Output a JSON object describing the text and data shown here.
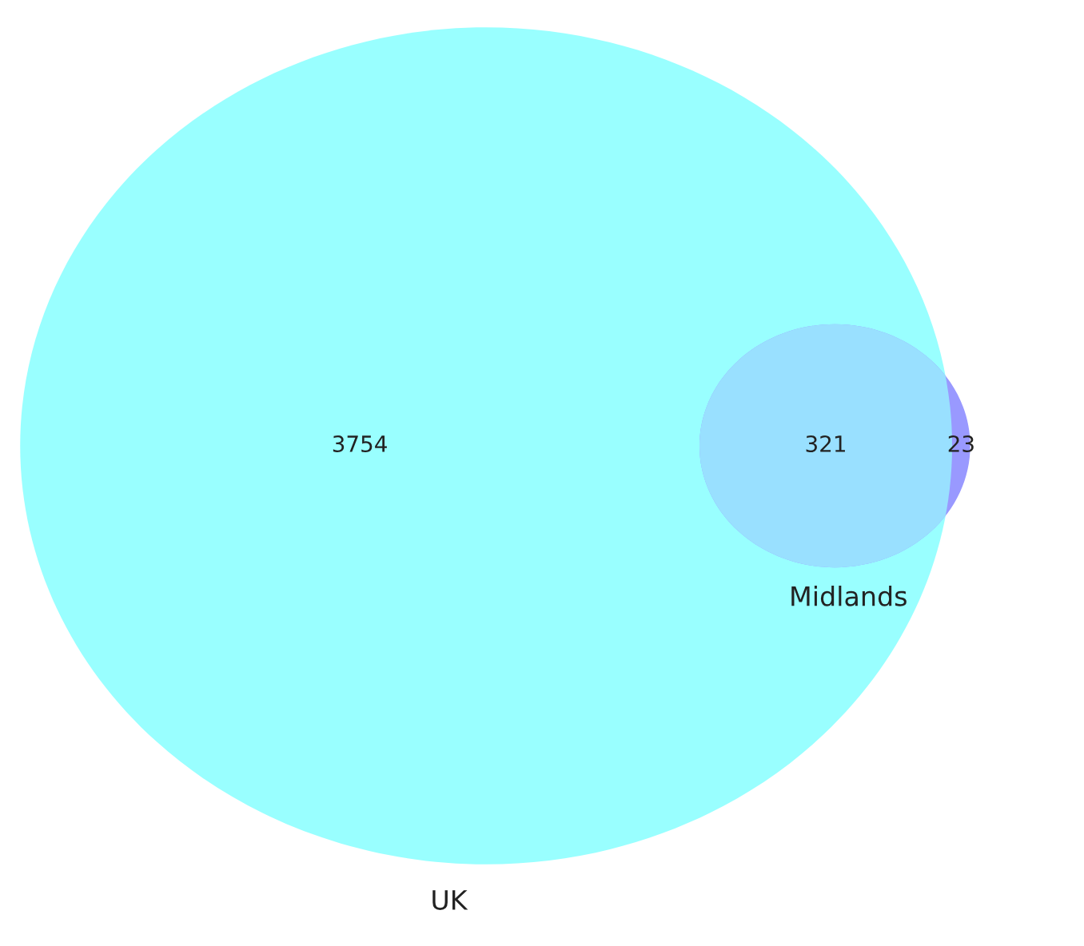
{
  "chart_data": {
    "type": "other",
    "categories": [
      null,
      null,
      null
    ],
    "values": [
      3754,
      321,
      23
    ],
    "colors": [
      "#99ffff",
      "#99e0ff",
      "#9999ff"
    ],
    "annotations": [
      "UK",
      "Midlands"
    ],
    "data_labels": true
  }
}
